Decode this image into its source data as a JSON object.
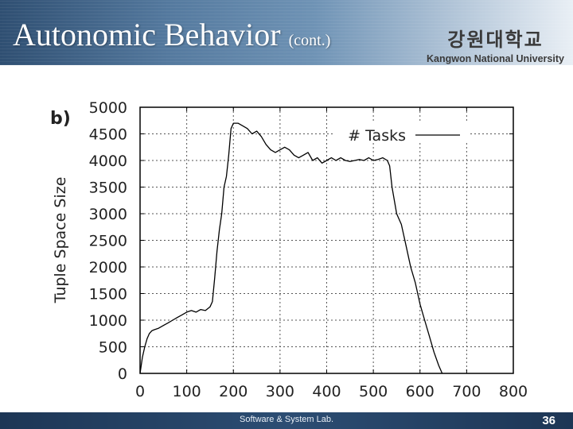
{
  "slide": {
    "title": "Autonomic Behavior",
    "title_suffix": "(cont.)",
    "logo_korean": "강원대학교",
    "logo_english": "Kangwon National University",
    "footer": "Software & System Lab.",
    "page_number": "36"
  },
  "chart_data": {
    "type": "line",
    "panel_label": "b)",
    "ylabel": "Tuple Space Size",
    "xlabel": "",
    "xlim": [
      0,
      800
    ],
    "ylim": [
      0,
      5000
    ],
    "xticks": [
      0,
      100,
      200,
      300,
      400,
      500,
      600,
      700,
      800
    ],
    "yticks": [
      0,
      500,
      1000,
      1500,
      2000,
      2500,
      3000,
      3500,
      4000,
      4500,
      5000
    ],
    "grid": true,
    "legend_position": "top-right",
    "series": [
      {
        "name": "# Tasks",
        "color": "#000000",
        "x": [
          0,
          5,
          10,
          15,
          20,
          25,
          30,
          40,
          50,
          60,
          70,
          80,
          90,
          100,
          110,
          120,
          130,
          140,
          150,
          155,
          160,
          165,
          170,
          175,
          180,
          185,
          190,
          195,
          200,
          210,
          220,
          230,
          240,
          250,
          260,
          270,
          280,
          290,
          300,
          310,
          320,
          330,
          340,
          350,
          360,
          370,
          380,
          390,
          400,
          410,
          420,
          430,
          440,
          450,
          460,
          470,
          480,
          490,
          500,
          510,
          520,
          530,
          535,
          540,
          550,
          560,
          570,
          580,
          590,
          600,
          610,
          620,
          630,
          640,
          650,
          660,
          665
        ],
        "y": [
          0,
          300,
          500,
          650,
          750,
          800,
          820,
          850,
          900,
          950,
          1000,
          1050,
          1100,
          1150,
          1180,
          1150,
          1200,
          1180,
          1250,
          1350,
          1800,
          2300,
          2700,
          3000,
          3500,
          3700,
          4100,
          4600,
          4700,
          4700,
          4650,
          4600,
          4500,
          4550,
          4450,
          4300,
          4200,
          4150,
          4200,
          4250,
          4200,
          4100,
          4050,
          4100,
          4150,
          4000,
          4050,
          3950,
          4000,
          4050,
          4000,
          4050,
          4000,
          3980,
          4000,
          4020,
          4000,
          4050,
          4000,
          4020,
          4050,
          4000,
          3900,
          3500,
          3000,
          2800,
          2400,
          2000,
          1700,
          1300,
          1000,
          700,
          400,
          150,
          -50,
          -200,
          -300
        ]
      }
    ]
  }
}
